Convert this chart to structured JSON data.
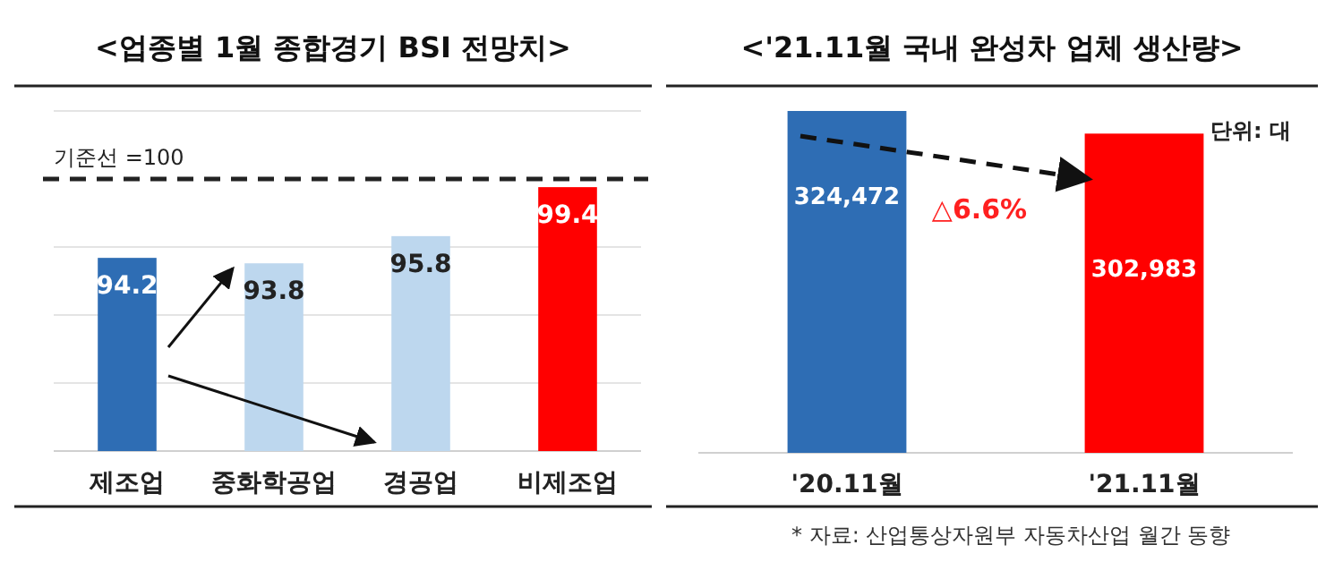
{
  "chart_data": [
    {
      "type": "bar",
      "title": "<업종별 1월 종합경기 BSI 전망치>",
      "categories": [
        "제조업",
        "중화학공업",
        "경공업",
        "비제조업"
      ],
      "values": [
        94.2,
        93.8,
        95.8,
        99.4
      ],
      "colors": [
        "#2e6db4",
        "#bdd7ee",
        "#bdd7ee",
        "#ff0000"
      ],
      "data_labels": true,
      "ylim": [
        80,
        105
      ],
      "yticks": [
        {
          "value": 80,
          "label": null
        },
        {
          "value": 85,
          "label": null
        },
        {
          "value": 90,
          "label": null
        },
        {
          "value": 95,
          "label": null
        },
        {
          "value": 105,
          "label": null
        }
      ],
      "grid": "y",
      "tick_labels": "x",
      "ref_lines": [
        {
          "axis": "y",
          "value": 100,
          "label": "기준선 =100",
          "color": "#222222",
          "line_style": "dashed"
        }
      ]
    },
    {
      "type": "bar",
      "title": "<'21.11월 국내 완성차 업체 생산량>",
      "categories": [
        "'20.11월",
        "'21.11월"
      ],
      "values": [
        324472,
        302983
      ],
      "value_labels": [
        "324,472",
        "302,983"
      ],
      "colors": [
        "#2e6db4",
        "#ff0000"
      ],
      "tick_labels": "x",
      "annotations": [
        "단위: 대",
        "△6.6%",
        "* 자료: 산업통상자원부 자동차산업 월간 동향"
      ]
    }
  ]
}
